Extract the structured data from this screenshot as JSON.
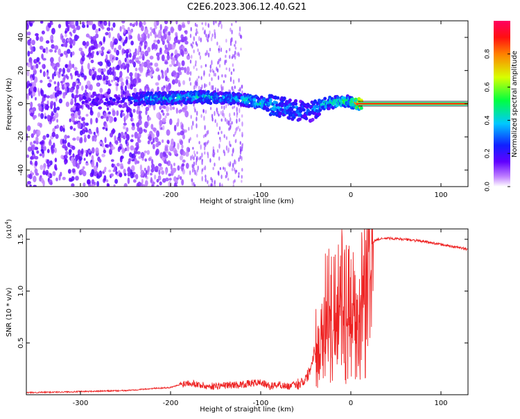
{
  "title": "C2E6.2023.306.12.40.G21",
  "colors": {
    "snr_line": "#ee2222",
    "colormap": [
      "#ffffff",
      "#7a00ff",
      "#2030ff",
      "#00d0ff",
      "#00ff60",
      "#e0ff00",
      "#ff6000",
      "#ff0050"
    ]
  },
  "chart_data": [
    {
      "type": "heatmap",
      "xlabel": "Height of straight line (km)",
      "ylabel": "Frequency (Hz)",
      "xlim": [
        -360,
        130
      ],
      "ylim": [
        -50,
        50
      ],
      "xticks": [
        -300,
        -200,
        -100,
        0,
        100
      ],
      "yticks": [
        -40,
        -20,
        0,
        20,
        40
      ],
      "colorbar": {
        "label": "Normalized spectral amplitude",
        "range": [
          0,
          1
        ],
        "ticks": [
          "0.0",
          "0.2",
          "0.4",
          "0.6",
          "0.8"
        ]
      },
      "ridge": [
        {
          "x": -300,
          "freq": 1.5,
          "amp": 0.2
        },
        {
          "x": -250,
          "freq": 2.0,
          "amp": 0.2
        },
        {
          "x": -230,
          "freq": 3.0,
          "amp": 0.35
        },
        {
          "x": -200,
          "freq": 3.5,
          "amp": 0.4
        },
        {
          "x": -170,
          "freq": 4.0,
          "amp": 0.4
        },
        {
          "x": -140,
          "freq": 3.5,
          "amp": 0.35
        },
        {
          "x": -120,
          "freq": 2.5,
          "amp": 0.4
        },
        {
          "x": -100,
          "freq": 0.5,
          "amp": 0.45
        },
        {
          "x": -80,
          "freq": -2.0,
          "amp": 0.35
        },
        {
          "x": -60,
          "freq": -4.0,
          "amp": 0.35
        },
        {
          "x": -45,
          "freq": -5.0,
          "amp": 0.3
        },
        {
          "x": -30,
          "freq": 0.0,
          "amp": 0.4
        },
        {
          "x": -10,
          "freq": 1.5,
          "amp": 0.5
        },
        {
          "x": 0,
          "freq": 1.0,
          "amp": 0.5
        },
        {
          "x": 10,
          "freq": 0.0,
          "amp": 0.9
        },
        {
          "x": 130,
          "freq": 0.0,
          "amp": 1.0
        }
      ]
    },
    {
      "type": "line",
      "xlabel": "Height of straight line (km)",
      "ylabel": "SNR (10 * v/v)",
      "yscale_label": "(x10",
      "yscale_exp": "4",
      "xlim": [
        -360,
        130
      ],
      "ylim": [
        0.0,
        1.6
      ],
      "xticks": [
        -300,
        -200,
        -100,
        0,
        100
      ],
      "yticks": [
        "0.5",
        "1.0",
        "1.5"
      ],
      "series": [
        {
          "x": [
            -360,
            -300,
            -250,
            -220,
            -200,
            -180,
            -170,
            -160,
            -140,
            -120,
            -100,
            -90,
            -80,
            -70,
            -60,
            -50,
            -45,
            -40,
            -35,
            -30,
            -25,
            -20,
            -15,
            -10,
            -5,
            0,
            5,
            10,
            15,
            20,
            25,
            30,
            40,
            60,
            80,
            100,
            120,
            130
          ],
          "y": [
            0.02,
            0.03,
            0.04,
            0.06,
            0.07,
            0.12,
            0.1,
            0.08,
            0.09,
            0.1,
            0.12,
            0.08,
            0.1,
            0.08,
            0.1,
            0.15,
            0.25,
            0.45,
            0.75,
            0.95,
            0.9,
            0.75,
            0.9,
            1.1,
            0.95,
            0.9,
            1.0,
            1.15,
            1.3,
            1.45,
            1.48,
            1.5,
            1.51,
            1.5,
            1.48,
            1.45,
            1.42,
            1.4
          ]
        }
      ]
    }
  ]
}
